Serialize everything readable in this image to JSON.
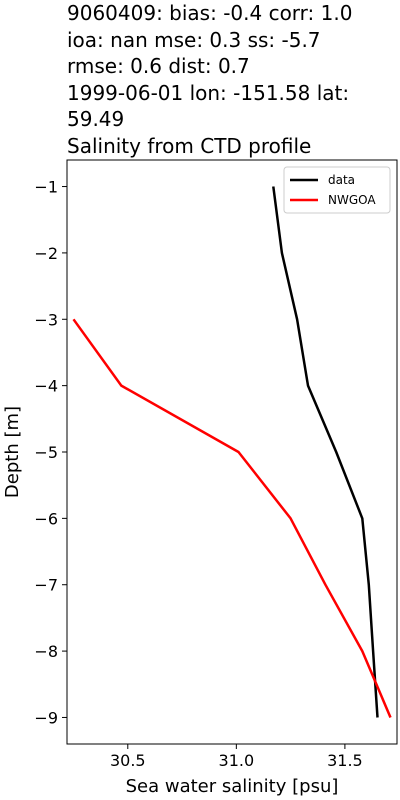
{
  "header": {
    "title_lines": [
      "9060409: bias: -0.4  corr: 1.0",
      "ioa: nan  mse: 0.3  ss: -5.7",
      "rmse: 0.6  dist: 0.7",
      "1999-06-01 lon: -151.58 lat:",
      "59.49",
      "Salinity from CTD profile"
    ]
  },
  "chart_data": {
    "type": "line",
    "title": "9060409: bias: -0.4  corr: 1.0 ioa: nan  mse: 0.3  ss: -5.7 rmse: 0.6  dist: 0.7 1999-06-01 lon: -151.58 lat: 59.49 Salinity from CTD profile",
    "xlabel": "Sea water salinity [psu]",
    "ylabel": "Depth [m]",
    "xlim": [
      30.22,
      31.74
    ],
    "ylim": [
      -9.4,
      -0.6
    ],
    "xticks": [
      30.5,
      31.0,
      31.5
    ],
    "xtick_labels": [
      "30.5",
      "31.0",
      "31.5"
    ],
    "yticks": [
      -1,
      -2,
      -3,
      -4,
      -5,
      -6,
      -7,
      -8,
      -9
    ],
    "ytick_labels": [
      "−1",
      "−2",
      "−3",
      "−4",
      "−5",
      "−6",
      "−7",
      "−8",
      "−9"
    ],
    "grid": false,
    "legend_position": "top-right",
    "series": [
      {
        "name": "data",
        "color": "#000000",
        "points": [
          {
            "x": 31.17,
            "y": -1
          },
          {
            "x": 31.21,
            "y": -2
          },
          {
            "x": 31.28,
            "y": -3
          },
          {
            "x": 31.33,
            "y": -4
          },
          {
            "x": 31.46,
            "y": -5
          },
          {
            "x": 31.58,
            "y": -6
          },
          {
            "x": 31.61,
            "y": -7
          },
          {
            "x": 31.63,
            "y": -8
          },
          {
            "x": 31.65,
            "y": -9
          }
        ]
      },
      {
        "name": "NWGOA",
        "color": "#ff0000",
        "points": [
          {
            "x": 30.25,
            "y": -3
          },
          {
            "x": 30.47,
            "y": -4
          },
          {
            "x": 31.01,
            "y": -5
          },
          {
            "x": 31.25,
            "y": -6
          },
          {
            "x": 31.41,
            "y": -7
          },
          {
            "x": 31.58,
            "y": -8
          },
          {
            "x": 31.71,
            "y": -9
          }
        ]
      }
    ]
  }
}
